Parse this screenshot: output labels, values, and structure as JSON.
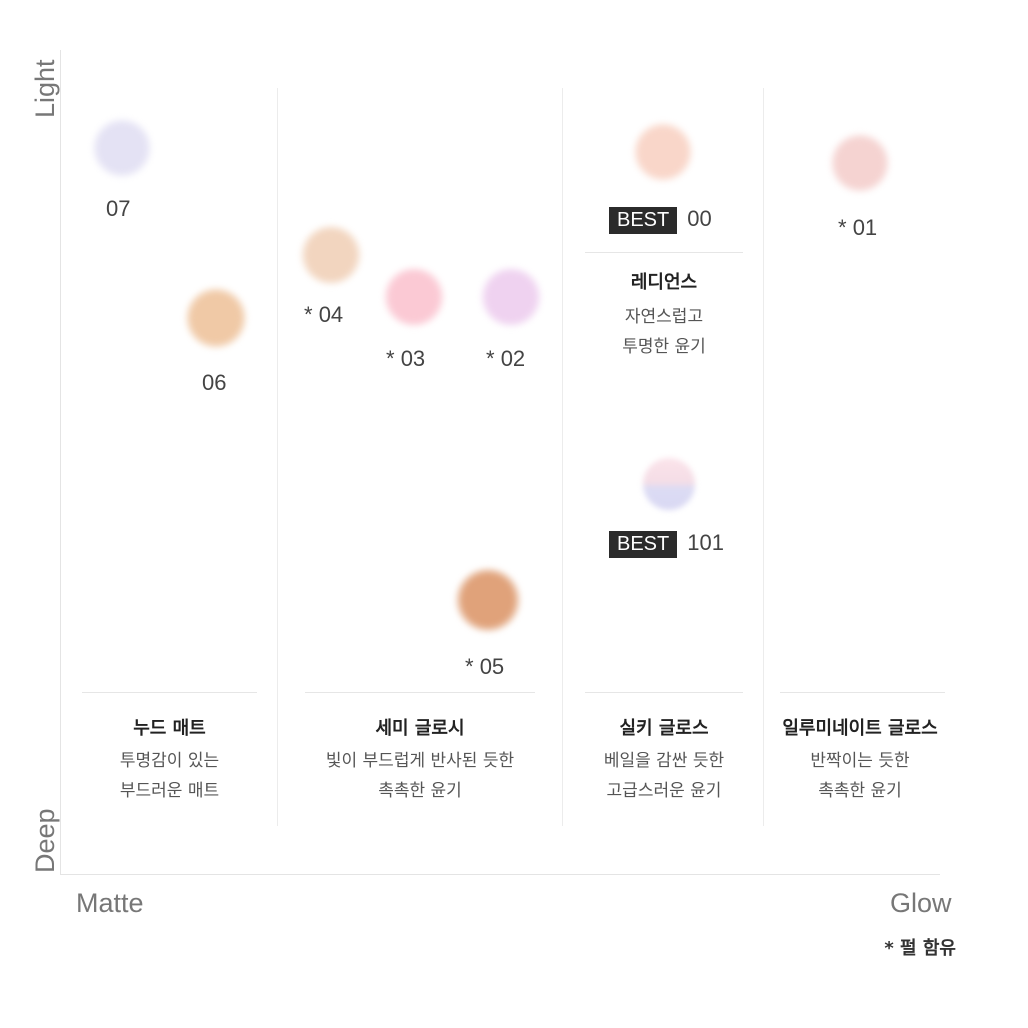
{
  "chart_data": {
    "type": "scatter",
    "xlabel_left": "Matte",
    "xlabel_right": "Glow",
    "ylabel_top": "Light",
    "ylabel_bottom": "Deep",
    "grid": false,
    "categories": [
      {
        "title": "누드 매트",
        "desc_lines": [
          "투명감이 있는",
          "부드러운 매트"
        ]
      },
      {
        "title": "세미 글로시",
        "desc_lines": [
          "빛이 부드럽게 반사된 듯한",
          "촉촉한 윤기"
        ]
      },
      {
        "title": "실키 글로스",
        "desc_lines": [
          "베일을 감싼 듯한",
          "고급스러운 윤기"
        ]
      },
      {
        "title": "일루미네이트 글로스",
        "desc_lines": [
          "반짝이는 듯한",
          "촉촉한 윤기"
        ]
      }
    ],
    "points": [
      {
        "label": "07",
        "pearl": false,
        "best": false,
        "color": "#e4e2f4"
      },
      {
        "label": "06",
        "pearl": false,
        "best": false,
        "color": "#f0c9a6"
      },
      {
        "label": "04",
        "pearl": true,
        "best": false,
        "color": "#f2d5bf"
      },
      {
        "label": "03",
        "pearl": true,
        "best": false,
        "color": "#fbc9d4"
      },
      {
        "label": "02",
        "pearl": true,
        "best": false,
        "color": "#efd2f0"
      },
      {
        "label": "05",
        "pearl": true,
        "best": false,
        "color": "#e0a27a"
      },
      {
        "label": "00",
        "pearl": false,
        "best": true,
        "color": "#f9d6c9"
      },
      {
        "label": "101",
        "pearl": false,
        "best": true,
        "color": "#efdbe9"
      },
      {
        "label": "01",
        "pearl": true,
        "best": false,
        "color": "#f5d3d1"
      }
    ],
    "sub_category": {
      "title": "레디언스",
      "desc_lines": [
        "자연스럽고",
        "투명한 윤기"
      ]
    },
    "best_badge": "BEST",
    "pearl_marker": "*",
    "footnote": "* 펄 함유"
  }
}
